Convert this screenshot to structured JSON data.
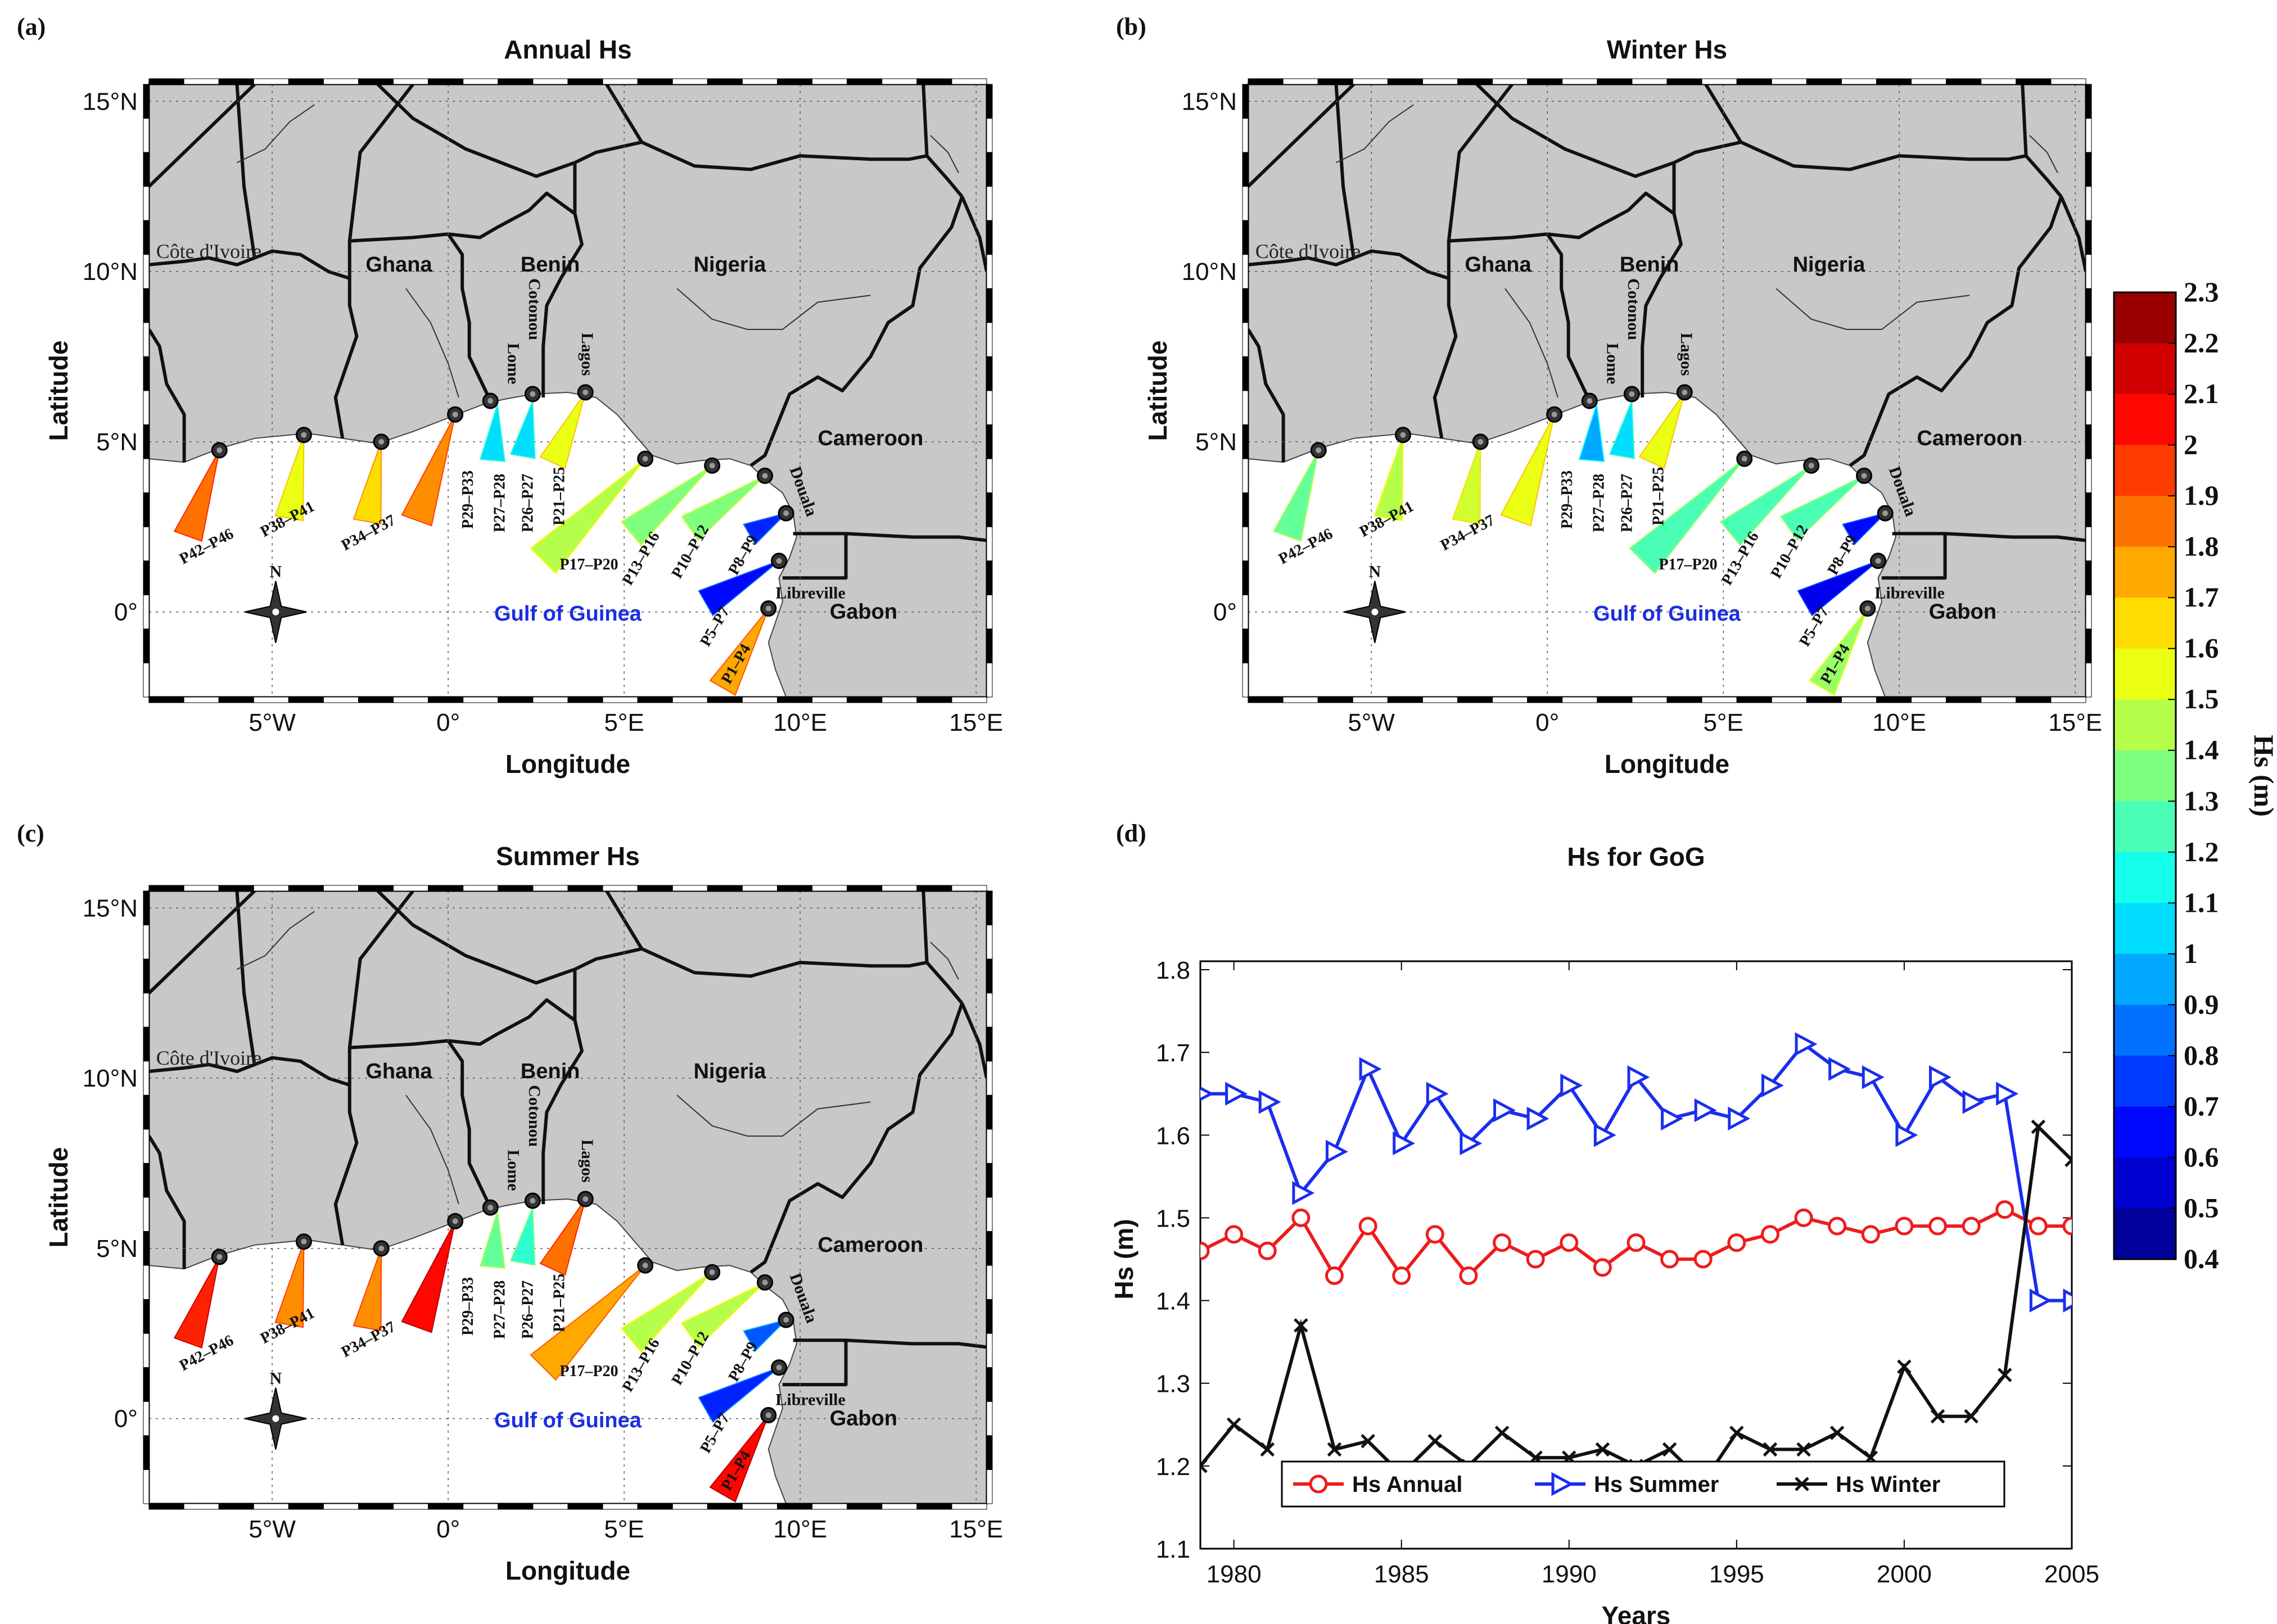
{
  "maps": [
    {
      "panel": "(a)",
      "title": "Annual Hs"
    },
    {
      "panel": "(b)",
      "title": "Winter Hs"
    },
    {
      "panel": "(c)",
      "title": "Summer Hs"
    }
  ],
  "map_axes": {
    "xlabel": "Longitude",
    "ylabel": "Latitude",
    "lon_ticks": [
      "5°W",
      "0°",
      "5°E",
      "10°E",
      "15°E"
    ],
    "lat_ticks": [
      "15°N",
      "10°N",
      "5°N",
      "0°"
    ]
  },
  "map_labels": {
    "countries": [
      "Côte d'Ivoire",
      "Ghana",
      "Benin",
      "Nigeria",
      "Cameroon",
      "Gabon"
    ],
    "cities": [
      "Lome",
      "Cotonou",
      "Lagos",
      "Douala",
      "Libreville"
    ],
    "sea": "Gulf of Guinea",
    "compass": "N"
  },
  "segments": [
    "P42–P46",
    "P38–P41",
    "P34–P37",
    "P29–P33",
    "P27–P28",
    "P26–P27",
    "P21–P25",
    "P17–P20",
    "P13–P16",
    "P10–P12",
    "P8–P9",
    "P5–P7",
    "P1–P4"
  ],
  "segment_hs": {
    "annual": [
      1.85,
      1.55,
      1.65,
      1.8,
      1.05,
      1.05,
      1.55,
      1.45,
      1.35,
      1.35,
      0.7,
      0.65,
      1.75
    ],
    "winter": [
      1.3,
      1.45,
      1.5,
      1.55,
      0.95,
      1.05,
      1.55,
      1.25,
      1.25,
      1.25,
      0.65,
      0.6,
      1.4
    ],
    "summer": [
      2.0,
      1.8,
      1.8,
      2.05,
      1.3,
      1.2,
      1.85,
      1.75,
      1.45,
      1.45,
      0.8,
      0.7,
      2.05
    ]
  },
  "colorbar": {
    "title": "Hs (m)",
    "min": 0.4,
    "max": 2.3,
    "tick_labels": [
      "2.3",
      "2.2",
      "2.1",
      "2",
      "1.9",
      "1.8",
      "1.7",
      "1.6",
      "1.5",
      "1.4",
      "1.3",
      "1.2",
      "1.1",
      "1",
      "0.9",
      "0.8",
      "0.7",
      "0.6",
      "0.5",
      "0.4"
    ]
  },
  "chart_data": {
    "type": "line",
    "panel": "(d)",
    "title": "Hs for GoG",
    "xlabel": "Years",
    "ylabel": "Hs (m)",
    "xlim": [
      1979,
      2005
    ],
    "ylim": [
      1.1,
      1.8
    ],
    "x_tick_labels": [
      "1980",
      "1985",
      "1990",
      "1995",
      "2000",
      "2005"
    ],
    "y_tick_labels": [
      "1.1",
      "1.2",
      "1.3",
      "1.4",
      "1.5",
      "1.6",
      "1.7",
      "1.8"
    ],
    "x": [
      1979,
      1980,
      1981,
      1982,
      1983,
      1984,
      1985,
      1986,
      1987,
      1988,
      1989,
      1990,
      1991,
      1992,
      1993,
      1994,
      1995,
      1996,
      1997,
      1998,
      1999,
      2000,
      2001,
      2002,
      2003,
      2004,
      2005
    ],
    "series": [
      {
        "name": "Hs Annual",
        "color": "#ee1c1c",
        "marker": "circle",
        "values": [
          1.46,
          1.48,
          1.46,
          1.5,
          1.43,
          1.49,
          1.43,
          1.48,
          1.43,
          1.47,
          1.45,
          1.47,
          1.44,
          1.47,
          1.45,
          1.45,
          1.47,
          1.48,
          1.5,
          1.49,
          1.48,
          1.49,
          1.49,
          1.49,
          1.51,
          1.49,
          1.49
        ]
      },
      {
        "name": "Hs Summer",
        "color": "#1a2eee",
        "marker": "triangle-right",
        "values": [
          1.65,
          1.65,
          1.64,
          1.53,
          1.58,
          1.68,
          1.59,
          1.65,
          1.59,
          1.63,
          1.62,
          1.66,
          1.6,
          1.67,
          1.62,
          1.63,
          1.62,
          1.66,
          1.71,
          1.68,
          1.67,
          1.6,
          1.67,
          1.64,
          1.65,
          1.4,
          1.4
        ]
      },
      {
        "name": "Hs Winter",
        "color": "#111111",
        "marker": "x",
        "values": [
          1.2,
          1.25,
          1.22,
          1.37,
          1.22,
          1.23,
          1.19,
          1.23,
          1.2,
          1.24,
          1.21,
          1.21,
          1.22,
          1.2,
          1.22,
          1.18,
          1.24,
          1.22,
          1.22,
          1.24,
          1.21,
          1.32,
          1.26,
          1.26,
          1.31,
          1.61,
          1.57
        ]
      }
    ],
    "legend_position": "bottom"
  }
}
